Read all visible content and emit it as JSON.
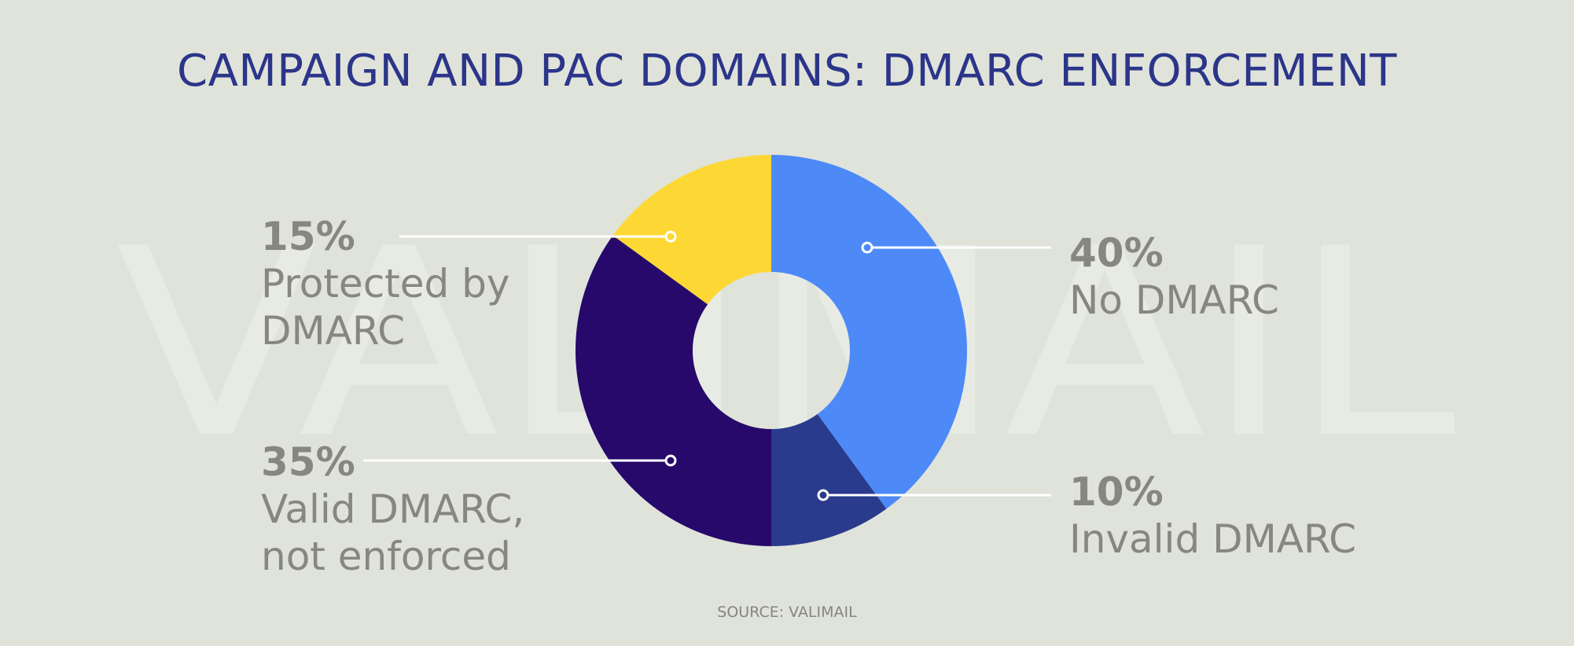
{
  "chart_data": {
    "type": "donut",
    "title": "CAMPAIGN AND PAC DOMAINS: DMARC ENFORCEMENT",
    "watermark": "VALIMAIL",
    "source": "SOURCE: VALIMAIL",
    "categories": [
      "No DMARC",
      "Invalid DMARC",
      "Valid DMARC, not enforced",
      "Protected by DMARC"
    ],
    "values": [
      40,
      10,
      35,
      15
    ],
    "value_labels": [
      "40%",
      "10%",
      "35%",
      "15%"
    ],
    "colors": [
      "#4d8af8",
      "#2a3a8c",
      "#26096b",
      "#fdd835"
    ]
  }
}
